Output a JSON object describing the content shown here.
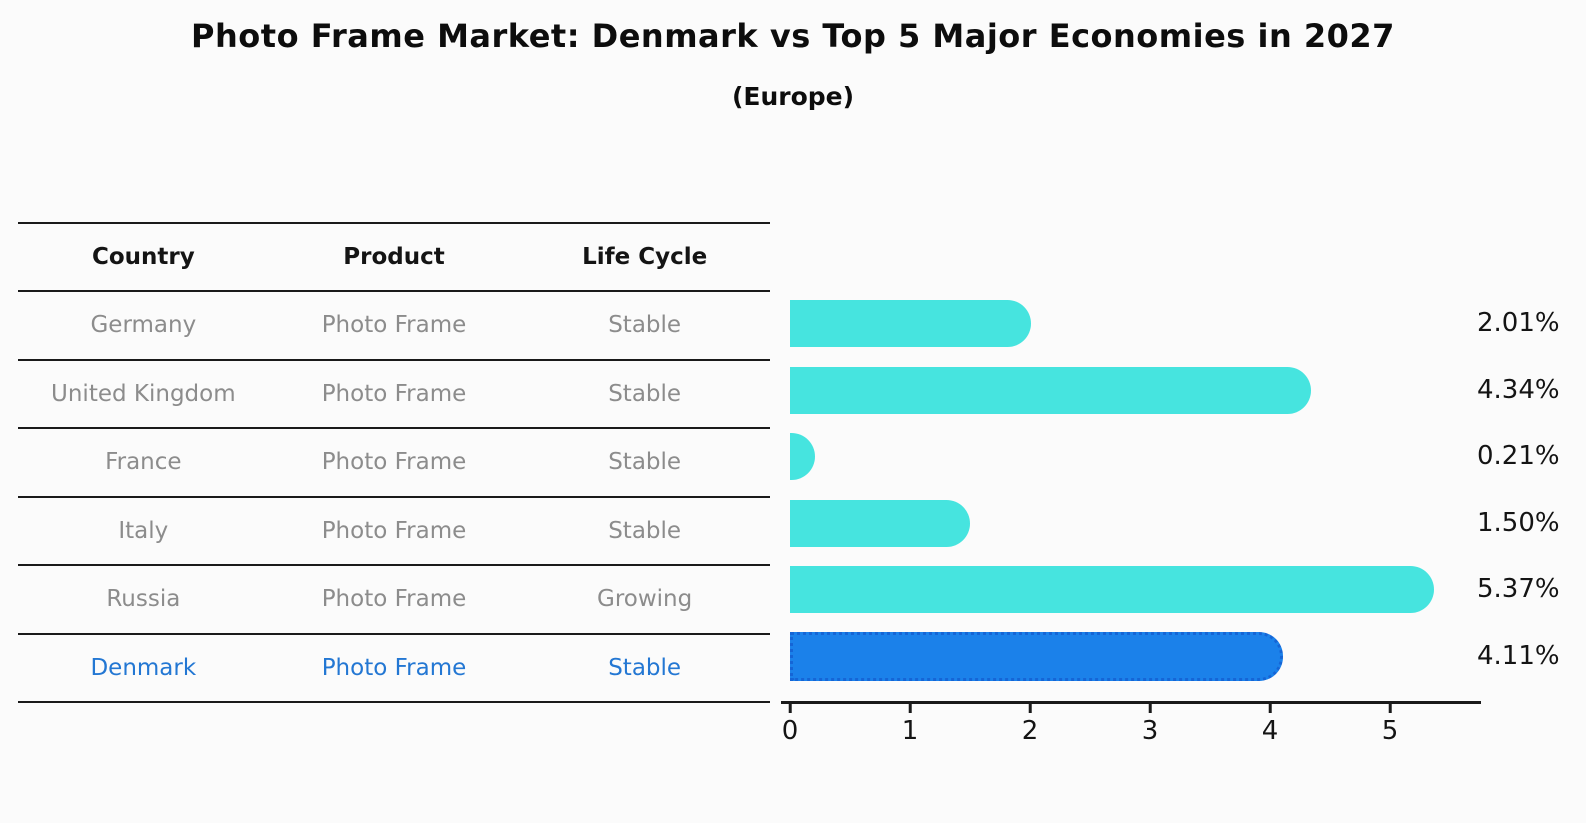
{
  "header": {
    "title": "Photo Frame Market: Denmark vs Top 5 Major Economies in 2027",
    "subtitle": "(Europe)"
  },
  "table": {
    "headers": [
      "Country",
      "Product",
      "Life Cycle"
    ],
    "rows": [
      {
        "country": "Germany",
        "product": "Photo Frame",
        "life_cycle": "Stable"
      },
      {
        "country": "United Kingdom",
        "product": "Photo Frame",
        "life_cycle": "Stable"
      },
      {
        "country": "France",
        "product": "Photo Frame",
        "life_cycle": "Stable"
      },
      {
        "country": "Italy",
        "product": "Photo Frame",
        "life_cycle": "Stable"
      },
      {
        "country": "Russia",
        "product": "Photo Frame",
        "life_cycle": "Growing"
      },
      {
        "country": "Denmark",
        "product": "Photo Frame",
        "life_cycle": "Stable"
      }
    ],
    "highlighted_row": "Denmark"
  },
  "chart_data": {
    "type": "bar",
    "orientation": "horizontal",
    "title": "Photo Frame Market: Denmark vs Top 5 Major Economies in 2027",
    "subtitle": "(Europe)",
    "categories": [
      "Germany",
      "United Kingdom",
      "France",
      "Italy",
      "Russia",
      "Denmark"
    ],
    "values": [
      2.01,
      4.34,
      0.21,
      1.5,
      5.37,
      4.11
    ],
    "value_labels": [
      "2.01%",
      "4.34%",
      "0.21%",
      "1.50%",
      "5.37%",
      "4.11%"
    ],
    "x_ticks": [
      "0",
      "1",
      "2",
      "3",
      "4",
      "5"
    ],
    "xlim": [
      0,
      5.75
    ],
    "grid": false,
    "legend": false,
    "bar_color": "#46E4DF",
    "highlight_index": 5,
    "highlight_color": "#1B81EA",
    "highlight_border_color": "#1565D6",
    "highlight_text_color": "#2377D3"
  }
}
